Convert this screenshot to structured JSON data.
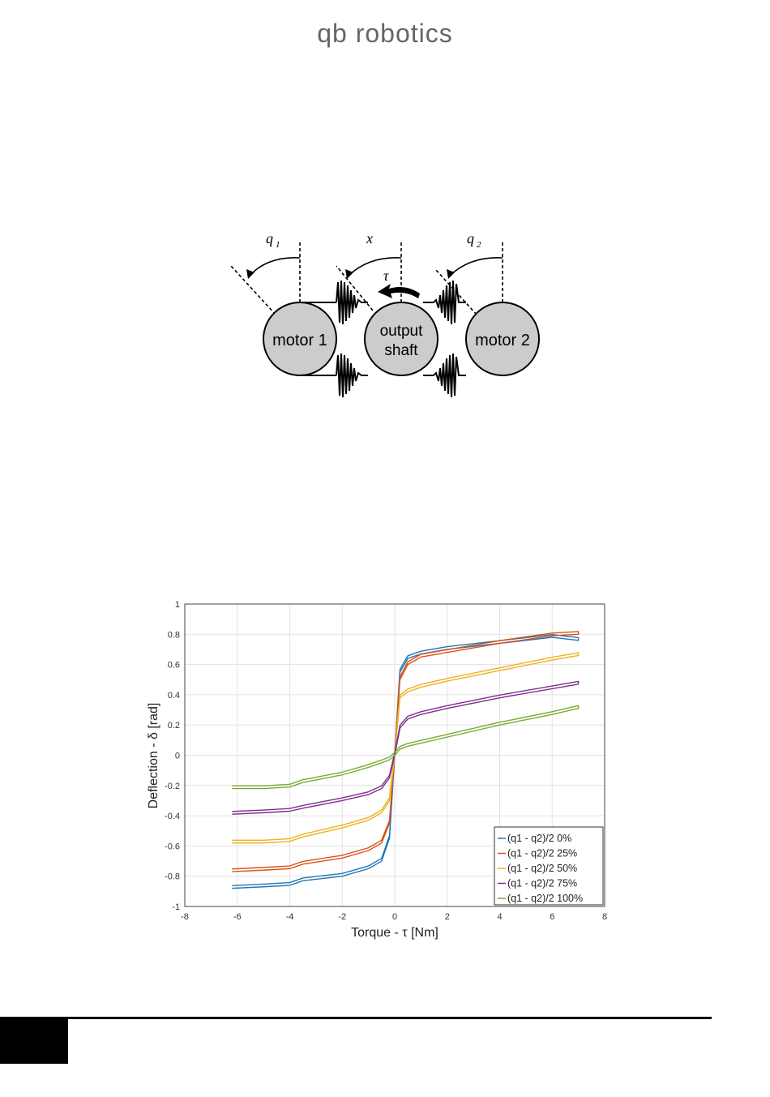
{
  "header": {
    "logo": "qb robotics"
  },
  "diagram": {
    "motor1": "motor 1",
    "output_line1": "output",
    "output_line2": "shaft",
    "motor2": "motor 2",
    "q1": "q",
    "q1_sub": "1",
    "x": "x",
    "tau": "τ",
    "q2": "q",
    "q2_sub": "2"
  },
  "chart_data": {
    "type": "line",
    "xlabel": "Torque - τ [Nm]",
    "ylabel": "Deflection - δ [rad]",
    "xlim": [
      -8,
      8
    ],
    "ylim": [
      -1,
      1
    ],
    "xticks": [
      -8,
      -6,
      -4,
      -2,
      0,
      2,
      4,
      6,
      8
    ],
    "yticks": [
      -1,
      -0.8,
      -0.6,
      -0.4,
      -0.2,
      0,
      0.2,
      0.4,
      0.6,
      0.8,
      1
    ],
    "grid": true,
    "legend_position": "bottom-right",
    "series": [
      {
        "name": "(q1 - q2)/2 0%",
        "color": "#1f77b4",
        "x": [
          -6.2,
          -5,
          -4,
          -3.5,
          -2,
          -1,
          -0.5,
          -0.2,
          0,
          0.2,
          0.5,
          1,
          2,
          4,
          6,
          7
        ],
        "y": [
          -0.88,
          -0.87,
          -0.86,
          -0.83,
          -0.8,
          -0.75,
          -0.7,
          -0.55,
          0,
          0.55,
          0.64,
          0.67,
          0.7,
          0.74,
          0.78,
          0.76
        ]
      },
      {
        "name": "(q1 - q2)/2 25%",
        "color": "#d95319",
        "x": [
          -6.2,
          -5,
          -4,
          -3.5,
          -2,
          -1,
          -0.5,
          -0.2,
          0,
          0.2,
          0.5,
          1,
          2,
          4,
          6,
          7
        ],
        "y": [
          -0.77,
          -0.76,
          -0.75,
          -0.72,
          -0.68,
          -0.63,
          -0.58,
          -0.45,
          0,
          0.5,
          0.6,
          0.65,
          0.68,
          0.74,
          0.79,
          0.8
        ]
      },
      {
        "name": "(q1 - q2)/2 50%",
        "color": "#edb120",
        "x": [
          -6.2,
          -5,
          -4,
          -3.5,
          -2,
          -1,
          -0.5,
          -0.2,
          0,
          0.2,
          0.5,
          1,
          2,
          4,
          6,
          7
        ],
        "y": [
          -0.58,
          -0.58,
          -0.57,
          -0.54,
          -0.48,
          -0.43,
          -0.38,
          -0.3,
          0,
          0.38,
          0.42,
          0.45,
          0.49,
          0.56,
          0.63,
          0.66
        ]
      },
      {
        "name": "(q1 - q2)/2 75%",
        "color": "#7e2f8e",
        "x": [
          -6.2,
          -5,
          -4,
          -3.5,
          -2,
          -1,
          -0.5,
          -0.2,
          0,
          0.2,
          0.5,
          1,
          2,
          4,
          6,
          7
        ],
        "y": [
          -0.39,
          -0.38,
          -0.37,
          -0.35,
          -0.3,
          -0.26,
          -0.22,
          -0.15,
          0,
          0.18,
          0.24,
          0.27,
          0.31,
          0.38,
          0.44,
          0.47
        ]
      },
      {
        "name": "(q1 - q2)/2 100%",
        "color": "#77ac30",
        "x": [
          -6.2,
          -5,
          -4,
          -3.5,
          -2,
          -1,
          -0.5,
          -0.2,
          0,
          0.2,
          0.5,
          1,
          2,
          4,
          6,
          7
        ],
        "y": [
          -0.22,
          -0.22,
          -0.21,
          -0.18,
          -0.13,
          -0.08,
          -0.05,
          -0.03,
          0,
          0.04,
          0.06,
          0.08,
          0.12,
          0.2,
          0.27,
          0.31
        ]
      }
    ]
  }
}
